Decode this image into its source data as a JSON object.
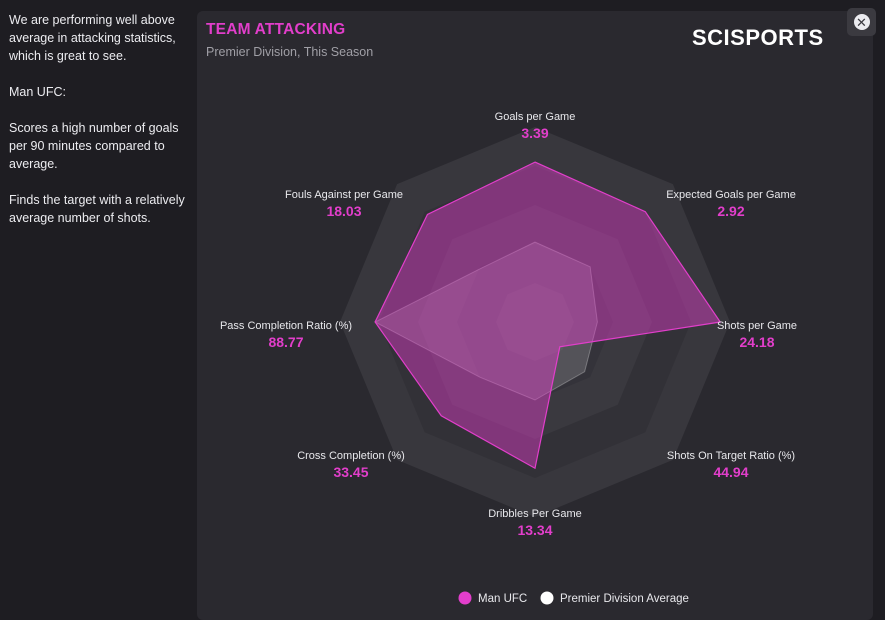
{
  "sidebar": {
    "paragraphs": [
      "We are performing well above average in attacking statistics, which is great to see.",
      "Man UFC:",
      "Scores a high number of goals per 90 minutes compared to average.",
      "Finds the target with a relatively average number of shots."
    ]
  },
  "header": {
    "title": "TEAM ATTACKING",
    "subtitle": "Premier Division, This Season",
    "logo": "SCISPORTS",
    "close_icon": "close-icon"
  },
  "colors": {
    "accent": "#e23ecb",
    "average": "#ffffff"
  },
  "chart_data": {
    "type": "radar",
    "title": "TEAM ATTACKING",
    "axes": [
      {
        "label": "Goals per Game",
        "value": "3.39"
      },
      {
        "label": "Expected Goals per Game",
        "value": "2.92"
      },
      {
        "label": "Shots per Game",
        "value": "24.18"
      },
      {
        "label": "Shots On Target Ratio (%)",
        "value": "44.94"
      },
      {
        "label": "Dribbles Per Game",
        "value": "13.34"
      },
      {
        "label": "Cross Completion (%)",
        "value": "33.45"
      },
      {
        "label": "Pass Completion Ratio (%)",
        "value": "88.77"
      },
      {
        "label": "Fouls Against per Game",
        "value": "18.03"
      }
    ],
    "scale": [
      0,
      1
    ],
    "rings": 5,
    "series": [
      {
        "name": "Man UFC",
        "color": "#e23ecb",
        "values": [
          0.82,
          0.8,
          0.95,
          0.18,
          0.75,
          0.68,
          0.82,
          0.78
        ]
      },
      {
        "name": "Premier Division Average",
        "color": "#ffffff",
        "values": [
          0.41,
          0.4,
          0.32,
          0.36,
          0.4,
          0.4,
          0.82,
          0.39
        ]
      }
    ],
    "legend": [
      "Man UFC",
      "Premier Division Average"
    ]
  }
}
